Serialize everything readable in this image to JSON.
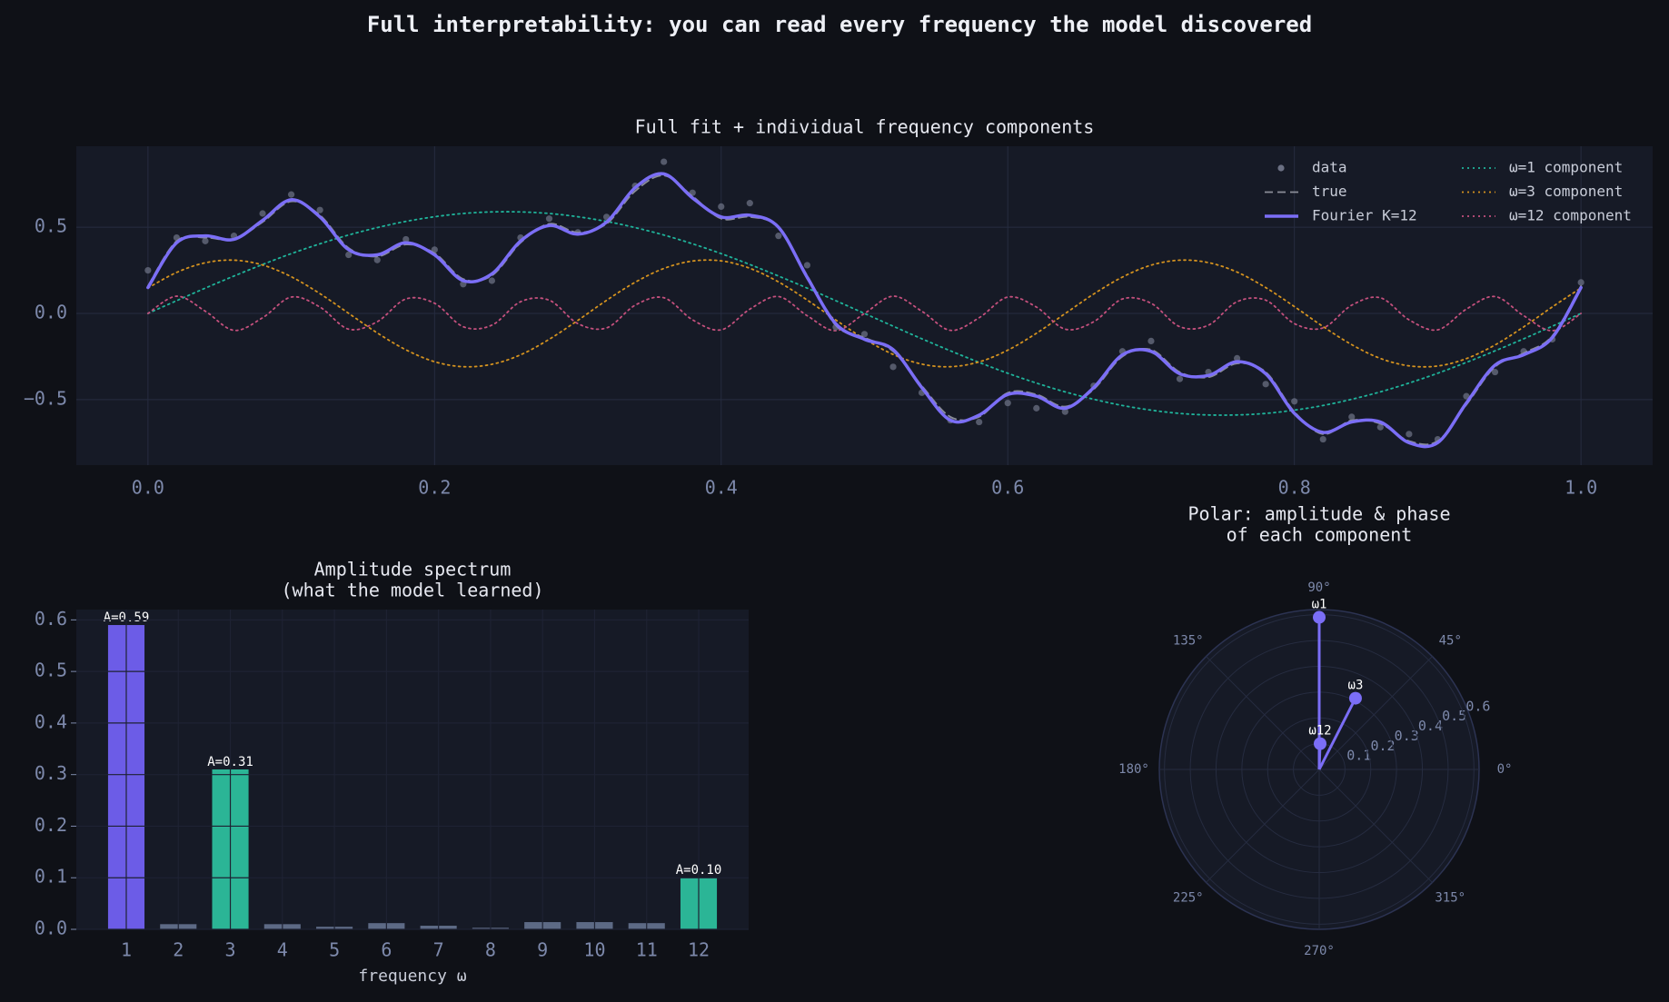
{
  "title": "Full interpretability: you can read every frequency the model discovered",
  "chart_data": [
    {
      "type": "line",
      "title": "Full fit + individual frequency components",
      "x": [
        0,
        0.02,
        0.04,
        0.06,
        0.08,
        0.1,
        0.12,
        0.14,
        0.16,
        0.18,
        0.2,
        0.22,
        0.24,
        0.26,
        0.28,
        0.3,
        0.32,
        0.34,
        0.36,
        0.38,
        0.4,
        0.42,
        0.44,
        0.46,
        0.48,
        0.5,
        0.52,
        0.54,
        0.56,
        0.58,
        0.6,
        0.62,
        0.64,
        0.66,
        0.68,
        0.7,
        0.72,
        0.74,
        0.76,
        0.78,
        0.8,
        0.82,
        0.84,
        0.86,
        0.88,
        0.9,
        0.92,
        0.94,
        0.96,
        0.98,
        1
      ],
      "series": [
        {
          "name": "data",
          "color": "#6b7083",
          "linestyle": "none",
          "marker": "o",
          "values": [
            0.25,
            0.44,
            0.42,
            0.45,
            0.58,
            0.69,
            0.6,
            0.34,
            0.31,
            0.43,
            0.37,
            0.17,
            0.19,
            0.44,
            0.55,
            0.47,
            0.56,
            0.74,
            0.88,
            0.7,
            0.62,
            0.64,
            0.45,
            0.28,
            -0.08,
            -0.12,
            -0.31,
            -0.46,
            -0.62,
            -0.63,
            -0.52,
            -0.55,
            -0.57,
            -0.42,
            -0.22,
            -0.16,
            -0.38,
            -0.34,
            -0.26,
            -0.41,
            -0.51,
            -0.73,
            -0.6,
            -0.66,
            -0.7,
            -0.73,
            -0.48,
            -0.34,
            -0.22,
            -0.15,
            0.18
          ]
        },
        {
          "name": "true",
          "color": "#8a8d98",
          "linestyle": "dashed",
          "values": [
            0.16,
            0.42,
            0.44,
            0.43,
            0.53,
            0.65,
            0.57,
            0.38,
            0.33,
            0.4,
            0.35,
            0.2,
            0.22,
            0.41,
            0.52,
            0.47,
            0.52,
            0.71,
            0.8,
            0.68,
            0.55,
            0.56,
            0.5,
            0.22,
            -0.07,
            -0.14,
            -0.22,
            -0.42,
            -0.6,
            -0.6,
            -0.46,
            -0.47,
            -0.54,
            -0.44,
            -0.25,
            -0.21,
            -0.34,
            -0.37,
            -0.29,
            -0.34,
            -0.57,
            -0.7,
            -0.62,
            -0.64,
            -0.74,
            -0.74,
            -0.53,
            -0.31,
            -0.23,
            -0.13,
            0.16
          ]
        },
        {
          "name": "Fourier K=12",
          "color": "#7b6ef6",
          "linestyle": "solid",
          "width": 3.5,
          "values": [
            0.15,
            0.41,
            0.45,
            0.43,
            0.54,
            0.66,
            0.56,
            0.37,
            0.34,
            0.41,
            0.34,
            0.19,
            0.23,
            0.42,
            0.51,
            0.46,
            0.53,
            0.73,
            0.81,
            0.67,
            0.56,
            0.57,
            0.5,
            0.21,
            -0.06,
            -0.15,
            -0.21,
            -0.43,
            -0.62,
            -0.59,
            -0.47,
            -0.48,
            -0.55,
            -0.43,
            -0.24,
            -0.22,
            -0.35,
            -0.36,
            -0.28,
            -0.35,
            -0.58,
            -0.69,
            -0.63,
            -0.63,
            -0.75,
            -0.75,
            -0.52,
            -0.3,
            -0.24,
            -0.14,
            0.15
          ]
        },
        {
          "name": "ω=1 component",
          "color": "#1fb39a",
          "linestyle": "dotted",
          "values": [
            0,
            0.074,
            0.147,
            0.217,
            0.284,
            0.347,
            0.404,
            0.455,
            0.498,
            0.534,
            0.561,
            0.58,
            0.589,
            0.589,
            0.58,
            0.561,
            0.534,
            0.498,
            0.455,
            0.404,
            0.347,
            0.284,
            0.217,
            0.147,
            0.074,
            0,
            -0.074,
            -0.147,
            -0.217,
            -0.284,
            -0.347,
            -0.404,
            -0.455,
            -0.498,
            -0.534,
            -0.561,
            -0.58,
            -0.589,
            -0.589,
            -0.58,
            -0.561,
            -0.534,
            -0.498,
            -0.455,
            -0.404,
            -0.347,
            -0.284,
            -0.217,
            -0.147,
            -0.074,
            0
          ]
        },
        {
          "name": "ω=3 component",
          "color": "#d4921f",
          "linestyle": "dotted",
          "values": [
            0.148,
            0.238,
            0.294,
            0.309,
            0.281,
            0.213,
            0.115,
            0.001,
            -0.113,
            -0.211,
            -0.28,
            -0.309,
            -0.295,
            -0.24,
            -0.15,
            -0.04,
            0.076,
            0.181,
            0.261,
            0.304,
            0.305,
            0.262,
            0.183,
            0.078,
            -0.038,
            -0.148,
            -0.238,
            -0.294,
            -0.309,
            -0.281,
            -0.213,
            -0.115,
            -0.001,
            0.113,
            0.211,
            0.28,
            0.309,
            0.295,
            0.24,
            0.15,
            0.04,
            -0.076,
            -0.181,
            -0.261,
            -0.304,
            -0.305,
            -0.262,
            -0.183,
            -0.078,
            0.038,
            0.148
          ]
        },
        {
          "name": "ω=12 component",
          "color": "#c4507d",
          "linestyle": "dotted",
          "values": [
            0,
            0.1,
            0.013,
            -0.098,
            -0.025,
            0.095,
            0.037,
            -0.091,
            -0.048,
            0.084,
            0.059,
            -0.077,
            -0.068,
            0.068,
            0.077,
            -0.059,
            -0.084,
            0.048,
            0.091,
            -0.037,
            -0.095,
            0.025,
            0.098,
            -0.013,
            -0.1,
            0,
            0.1,
            0.013,
            -0.098,
            -0.025,
            0.095,
            0.037,
            -0.091,
            -0.048,
            0.084,
            0.059,
            -0.077,
            -0.068,
            0.068,
            0.077,
            -0.059,
            -0.084,
            0.048,
            0.091,
            -0.037,
            -0.095,
            0.025,
            0.098,
            -0.013,
            -0.1,
            0
          ]
        }
      ],
      "xlim": [
        -0.05,
        1.05
      ],
      "ylim": [
        -0.88,
        0.97
      ],
      "xticks": [
        {
          "value": 0,
          "label": "0.0"
        },
        0.2,
        0.4,
        0.6,
        0.8,
        {
          "value": 1,
          "label": "1.0"
        }
      ],
      "yticks": [
        {
          "value": -0.5,
          "label": "−0.5"
        },
        {
          "value": 0,
          "label": "0.0"
        },
        0.5
      ],
      "grid": true,
      "legend": "upper right"
    },
    {
      "type": "bar",
      "title": [
        "Amplitude spectrum",
        "(what the model learned)"
      ],
      "xlabel": "frequency ω",
      "categories": [
        "1",
        "2",
        "3",
        "4",
        "5",
        "6",
        "7",
        "8",
        "9",
        "10",
        "11",
        "12"
      ],
      "values": [
        0.59,
        0.01,
        0.31,
        0.01,
        0.005,
        0.012,
        0.007,
        0.003,
        0.014,
        0.014,
        0.012,
        0.1
      ],
      "value_labels": [
        "A=0.59",
        null,
        "A=0.31",
        null,
        null,
        null,
        null,
        null,
        null,
        null,
        null,
        "A=0.10"
      ],
      "colors": [
        "#6c5ce7",
        "#5d6a85",
        "#2bb596",
        "#5d6a85",
        "#5d6a85",
        "#5d6a85",
        "#5d6a85",
        "#5d6a85",
        "#5d6a85",
        "#5d6a85",
        "#5d6a85",
        "#2bb596"
      ],
      "ylim": [
        0,
        0.62
      ],
      "yticks": [
        {
          "value": 0,
          "label": "0.0"
        },
        0.1,
        0.2,
        0.3,
        0.4,
        0.5,
        0.6
      ],
      "grid": true
    },
    {
      "type": "polar",
      "title": [
        "Polar: amplitude & phase",
        "of each component"
      ],
      "categories": [
        "ω1",
        "ω3",
        "ω12"
      ],
      "values": [
        0.59,
        0.31,
        0.1
      ],
      "angles": [
        90,
        63,
        88
      ],
      "color": "#7b6ef6",
      "rlim": [
        0,
        0.62
      ],
      "rticks": [
        0.1,
        0.2,
        0.3,
        0.4,
        0.5,
        0.6
      ],
      "angle_ticks": [
        {
          "value": 0,
          "label": "0°"
        },
        {
          "value": 45,
          "label": "45°"
        },
        {
          "value": 90,
          "label": "90°"
        },
        {
          "value": 135,
          "label": "135°"
        },
        {
          "value": 180,
          "label": "180°"
        },
        {
          "value": 225,
          "label": "225°"
        },
        {
          "value": 270,
          "label": "270°"
        },
        {
          "value": 315,
          "label": "315°"
        }
      ],
      "grid": true
    }
  ]
}
